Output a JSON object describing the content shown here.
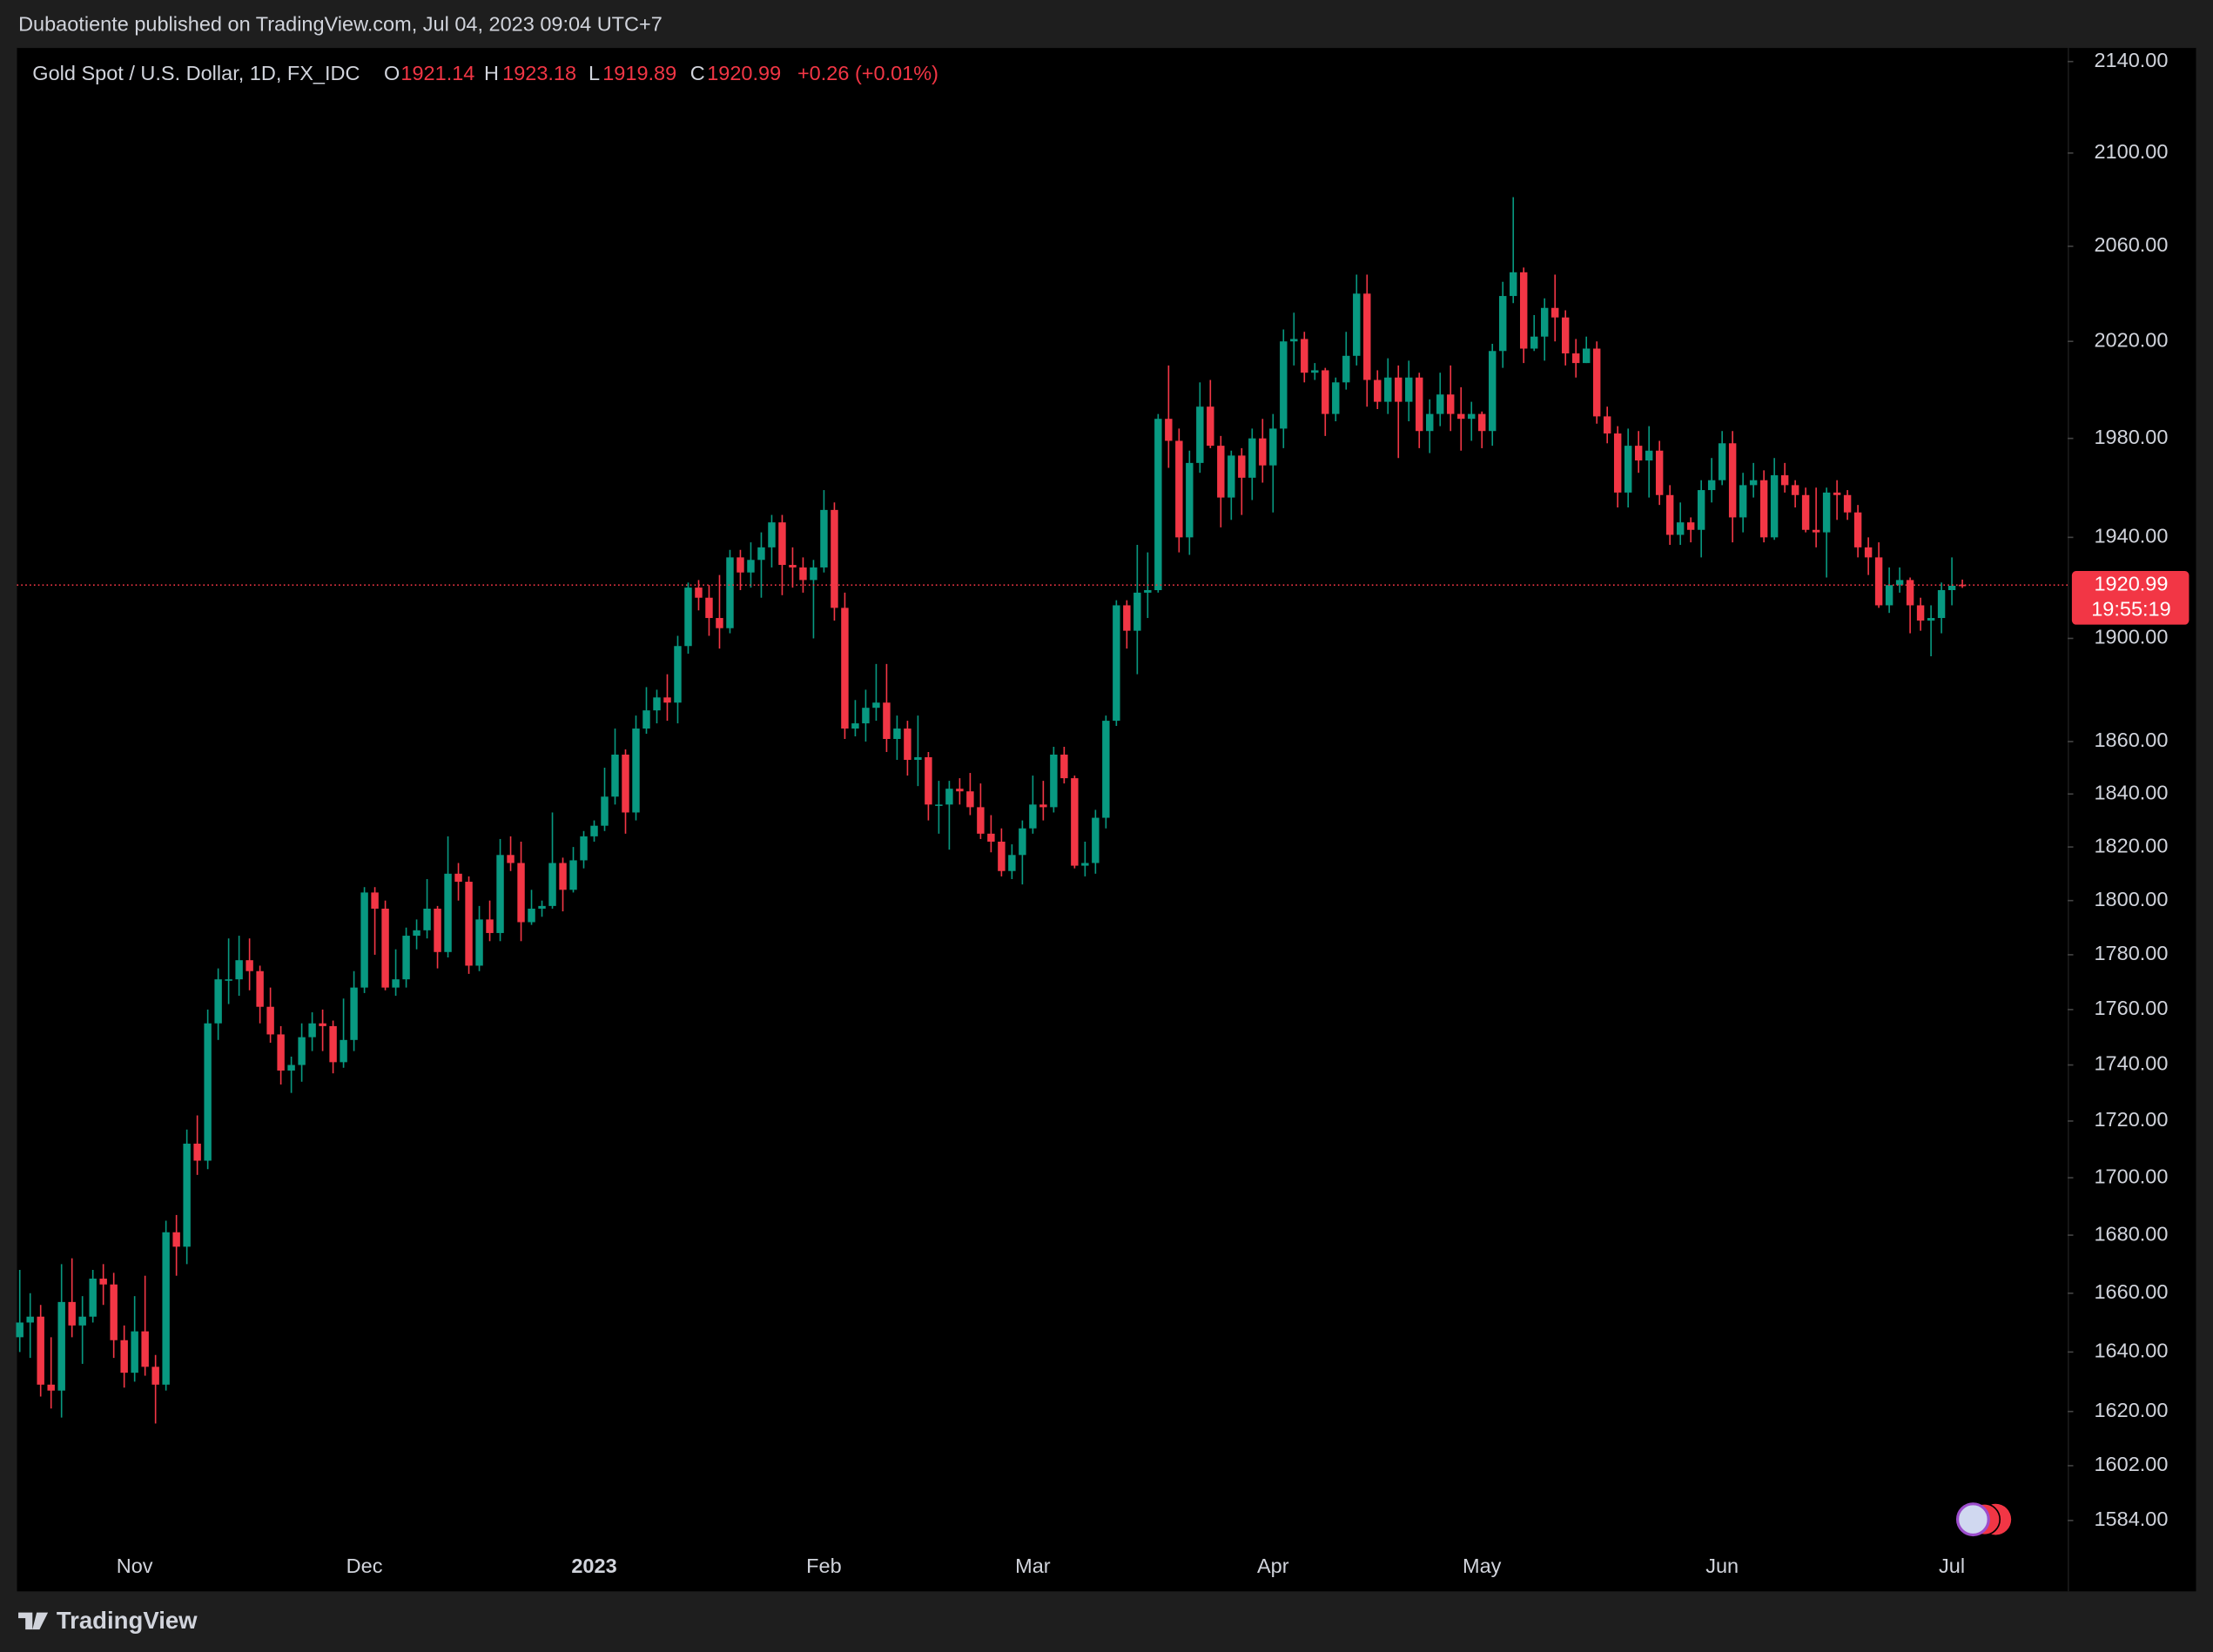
{
  "header": "Dubaotiente published on TradingView.com, Jul 04, 2023 09:04 UTC+7",
  "footer": "TradingView",
  "chart_data": {
    "type": "candlestick",
    "log_scale": true,
    "grid": false,
    "up_color": "#089981",
    "down_color": "#f23645",
    "legend": {
      "symbol": "Gold Spot / U.S. Dollar, 1D, FX_IDC",
      "labels": [
        "O",
        "H",
        "L",
        "C"
      ],
      "change": "+0.26 (+0.01%)"
    },
    "countdown": "19:55:19",
    "ylim": [
      1577,
      2146
    ],
    "yticks": [
      {
        "value": 2140,
        "label": "2140.00"
      },
      {
        "value": 2100,
        "label": "2100.00"
      },
      {
        "value": 2060,
        "label": "2060.00"
      },
      {
        "value": 2020,
        "label": "2020.00"
      },
      {
        "value": 1980,
        "label": "1980.00"
      },
      {
        "value": 1940,
        "label": "1940.00"
      },
      {
        "value": 1900,
        "label": "1900.00"
      },
      {
        "value": 1860,
        "label": "1860.00"
      },
      {
        "value": 1840,
        "label": "1840.00"
      },
      {
        "value": 1820,
        "label": "1820.00"
      },
      {
        "value": 1800,
        "label": "1800.00"
      },
      {
        "value": 1780,
        "label": "1780.00"
      },
      {
        "value": 1760,
        "label": "1760.00"
      },
      {
        "value": 1740,
        "label": "1740.00"
      },
      {
        "value": 1720,
        "label": "1720.00"
      },
      {
        "value": 1700,
        "label": "1700.00"
      },
      {
        "value": 1680,
        "label": "1680.00"
      },
      {
        "value": 1660,
        "label": "1660.00"
      },
      {
        "value": 1640,
        "label": "1640.00"
      },
      {
        "value": 1620,
        "label": "1620.00"
      },
      {
        "value": 1602,
        "label": "1602.00"
      },
      {
        "value": 1584,
        "label": "1584.00"
      }
    ],
    "categories": [
      null,
      null,
      null,
      null,
      null,
      null,
      null,
      null,
      null,
      null,
      null,
      "Nov",
      null,
      null,
      null,
      null,
      null,
      null,
      null,
      null,
      null,
      null,
      null,
      null,
      null,
      null,
      null,
      null,
      null,
      null,
      null,
      null,
      null,
      "Dec",
      null,
      null,
      null,
      null,
      null,
      null,
      null,
      null,
      null,
      null,
      null,
      null,
      null,
      null,
      null,
      null,
      null,
      null,
      null,
      null,
      null,
      "2023",
      null,
      null,
      null,
      null,
      null,
      null,
      null,
      null,
      null,
      null,
      null,
      null,
      null,
      null,
      null,
      null,
      null,
      null,
      null,
      null,
      null,
      "Feb",
      null,
      null,
      null,
      null,
      null,
      null,
      null,
      null,
      null,
      null,
      null,
      null,
      null,
      null,
      null,
      null,
      null,
      null,
      null,
      "Mar",
      null,
      null,
      null,
      null,
      null,
      null,
      null,
      null,
      null,
      null,
      null,
      null,
      null,
      null,
      null,
      null,
      null,
      null,
      null,
      null,
      null,
      null,
      "Apr",
      null,
      null,
      null,
      null,
      null,
      null,
      null,
      null,
      null,
      null,
      null,
      null,
      null,
      null,
      null,
      null,
      null,
      null,
      null,
      "May",
      null,
      null,
      null,
      null,
      null,
      null,
      null,
      null,
      null,
      null,
      null,
      null,
      null,
      null,
      null,
      null,
      null,
      null,
      null,
      null,
      null,
      null,
      "Jun",
      null,
      null,
      null,
      null,
      null,
      null,
      null,
      null,
      null,
      null,
      null,
      null,
      null,
      null,
      null,
      null,
      null,
      null,
      null,
      null,
      null,
      "Jul",
      null
    ],
    "ohlc": [
      [
        1645,
        1668,
        1640,
        1650
      ],
      [
        1650,
        1660,
        1638,
        1652
      ],
      [
        1652,
        1656,
        1625,
        1629
      ],
      [
        1629,
        1645,
        1621,
        1627
      ],
      [
        1627,
        1670,
        1618,
        1657
      ],
      [
        1657,
        1672,
        1645,
        1649
      ],
      [
        1649,
        1659,
        1636,
        1652
      ],
      [
        1652,
        1668,
        1650,
        1665
      ],
      [
        1665,
        1670,
        1656,
        1663
      ],
      [
        1663,
        1667,
        1638,
        1644
      ],
      [
        1644,
        1649,
        1628,
        1633
      ],
      [
        1633,
        1659,
        1630,
        1647
      ],
      [
        1647,
        1666,
        1632,
        1635
      ],
      [
        1635,
        1639,
        1616,
        1629
      ],
      [
        1629,
        1685,
        1627,
        1681
      ],
      [
        1681,
        1687,
        1666,
        1676
      ],
      [
        1676,
        1717,
        1670,
        1712
      ],
      [
        1712,
        1722,
        1701,
        1706
      ],
      [
        1706,
        1760,
        1703,
        1755
      ],
      [
        1755,
        1775,
        1749,
        1771
      ],
      [
        1771,
        1786,
        1762,
        1771
      ],
      [
        1771,
        1787,
        1765,
        1778
      ],
      [
        1778,
        1786,
        1767,
        1774
      ],
      [
        1774,
        1776,
        1755,
        1761
      ],
      [
        1761,
        1768,
        1748,
        1751
      ],
      [
        1751,
        1754,
        1733,
        1738
      ],
      [
        1738,
        1743,
        1730,
        1740
      ],
      [
        1740,
        1755,
        1734,
        1750
      ],
      [
        1750,
        1759,
        1745,
        1755
      ],
      [
        1755,
        1760,
        1745,
        1754
      ],
      [
        1754,
        1756,
        1737,
        1741
      ],
      [
        1741,
        1764,
        1739,
        1749
      ],
      [
        1749,
        1774,
        1745,
        1768
      ],
      [
        1768,
        1805,
        1766,
        1803
      ],
      [
        1803,
        1805,
        1780,
        1797
      ],
      [
        1797,
        1800,
        1767,
        1768
      ],
      [
        1768,
        1782,
        1765,
        1771
      ],
      [
        1771,
        1790,
        1768,
        1787
      ],
      [
        1787,
        1793,
        1782,
        1789
      ],
      [
        1789,
        1808,
        1786,
        1797
      ],
      [
        1797,
        1798,
        1775,
        1781
      ],
      [
        1781,
        1824,
        1779,
        1810
      ],
      [
        1810,
        1814,
        1800,
        1807
      ],
      [
        1807,
        1809,
        1773,
        1776
      ],
      [
        1776,
        1798,
        1774,
        1793
      ],
      [
        1793,
        1800,
        1785,
        1788
      ],
      [
        1788,
        1823,
        1785,
        1817
      ],
      [
        1817,
        1824,
        1811,
        1814
      ],
      [
        1814,
        1822,
        1785,
        1792
      ],
      [
        1792,
        1804,
        1791,
        1797
      ],
      [
        1797,
        1800,
        1794,
        1798
      ],
      [
        1798,
        1833,
        1797,
        1814
      ],
      [
        1814,
        1816,
        1796,
        1804
      ],
      [
        1804,
        1820,
        1803,
        1815
      ],
      [
        1815,
        1826,
        1812,
        1824
      ],
      [
        1824,
        1830,
        1822,
        1828
      ],
      [
        1828,
        1850,
        1826,
        1839
      ],
      [
        1839,
        1865,
        1836,
        1855
      ],
      [
        1855,
        1857,
        1825,
        1833
      ],
      [
        1833,
        1870,
        1830,
        1865
      ],
      [
        1865,
        1881,
        1863,
        1872
      ],
      [
        1872,
        1880,
        1867,
        1877
      ],
      [
        1877,
        1886,
        1868,
        1875
      ],
      [
        1875,
        1901,
        1867,
        1897
      ],
      [
        1897,
        1922,
        1894,
        1920
      ],
      [
        1920,
        1923,
        1911,
        1916
      ],
      [
        1916,
        1921,
        1901,
        1908
      ],
      [
        1908,
        1925,
        1896,
        1904
      ],
      [
        1904,
        1935,
        1902,
        1932
      ],
      [
        1932,
        1935,
        1919,
        1926
      ],
      [
        1926,
        1938,
        1920,
        1931
      ],
      [
        1931,
        1942,
        1916,
        1936
      ],
      [
        1936,
        1949,
        1928,
        1946
      ],
      [
        1946,
        1949,
        1917,
        1929
      ],
      [
        1929,
        1936,
        1920,
        1928
      ],
      [
        1928,
        1932,
        1918,
        1923
      ],
      [
        1923,
        1931,
        1900,
        1928
      ],
      [
        1928,
        1959,
        1926,
        1951
      ],
      [
        1951,
        1954,
        1907,
        1912
      ],
      [
        1912,
        1918,
        1861,
        1865
      ],
      [
        1865,
        1876,
        1862,
        1867
      ],
      [
        1867,
        1880,
        1860,
        1873
      ],
      [
        1873,
        1890,
        1868,
        1875
      ],
      [
        1875,
        1890,
        1856,
        1861
      ],
      [
        1861,
        1870,
        1853,
        1865
      ],
      [
        1865,
        1868,
        1847,
        1853
      ],
      [
        1853,
        1870,
        1843,
        1854
      ],
      [
        1854,
        1856,
        1830,
        1836
      ],
      [
        1836,
        1845,
        1825,
        1836
      ],
      [
        1836,
        1845,
        1819,
        1842
      ],
      [
        1842,
        1846,
        1836,
        1841
      ],
      [
        1841,
        1848,
        1832,
        1835
      ],
      [
        1835,
        1844,
        1823,
        1825
      ],
      [
        1825,
        1832,
        1818,
        1822
      ],
      [
        1822,
        1827,
        1809,
        1811
      ],
      [
        1811,
        1821,
        1808,
        1817
      ],
      [
        1817,
        1830,
        1806,
        1827
      ],
      [
        1827,
        1847,
        1825,
        1836
      ],
      [
        1836,
        1845,
        1830,
        1835
      ],
      [
        1835,
        1858,
        1833,
        1855
      ],
      [
        1855,
        1858,
        1844,
        1846
      ],
      [
        1846,
        1847,
        1812,
        1813
      ],
      [
        1813,
        1822,
        1809,
        1814
      ],
      [
        1814,
        1834,
        1810,
        1831
      ],
      [
        1831,
        1870,
        1827,
        1868
      ],
      [
        1868,
        1915,
        1866,
        1913
      ],
      [
        1913,
        1915,
        1896,
        1903
      ],
      [
        1903,
        1937,
        1886,
        1918
      ],
      [
        1918,
        1934,
        1908,
        1919
      ],
      [
        1919,
        1990,
        1918,
        1988
      ],
      [
        1988,
        2010,
        1968,
        1979
      ],
      [
        1979,
        1984,
        1934,
        1940
      ],
      [
        1940,
        1975,
        1933,
        1970
      ],
      [
        1970,
        2003,
        1966,
        1993
      ],
      [
        1993,
        2004,
        1976,
        1977
      ],
      [
        1977,
        1981,
        1944,
        1956
      ],
      [
        1956,
        1975,
        1947,
        1973
      ],
      [
        1973,
        1976,
        1949,
        1964
      ],
      [
        1964,
        1984,
        1955,
        1980
      ],
      [
        1980,
        1988,
        1962,
        1969
      ],
      [
        1969,
        1990,
        1950,
        1984
      ],
      [
        1984,
        2025,
        1976,
        2020
      ],
      [
        2020,
        2032,
        2010,
        2021
      ],
      [
        2021,
        2024,
        2003,
        2007
      ],
      [
        2007,
        2011,
        2004,
        2008
      ],
      [
        2008,
        2009,
        1981,
        1990
      ],
      [
        1990,
        2005,
        1987,
        2003
      ],
      [
        2003,
        2024,
        2000,
        2014
      ],
      [
        2014,
        2048,
        2010,
        2040
      ],
      [
        2040,
        2048,
        1993,
        2004
      ],
      [
        2004,
        2008,
        1992,
        1995
      ],
      [
        1995,
        2013,
        1990,
        2005
      ],
      [
        2005,
        2010,
        1972,
        1995
      ],
      [
        1995,
        2012,
        1987,
        2005
      ],
      [
        2005,
        2007,
        1976,
        1983
      ],
      [
        1983,
        1996,
        1974,
        1990
      ],
      [
        1990,
        2007,
        1985,
        1998
      ],
      [
        1998,
        2010,
        1983,
        1990
      ],
      [
        1990,
        2001,
        1975,
        1988
      ],
      [
        1988,
        1995,
        1979,
        1990
      ],
      [
        1990,
        1991,
        1976,
        1983
      ],
      [
        1983,
        2019,
        1977,
        2016
      ],
      [
        2016,
        2045,
        2009,
        2039
      ],
      [
        2039,
        2081,
        2036,
        2049
      ],
      [
        2049,
        2051,
        2011,
        2017
      ],
      [
        2017,
        2031,
        2016,
        2022
      ],
      [
        2022,
        2038,
        2012,
        2034
      ],
      [
        2034,
        2048,
        2020,
        2030
      ],
      [
        2030,
        2033,
        2010,
        2015
      ],
      [
        2015,
        2021,
        2005,
        2011
      ],
      [
        2011,
        2022,
        2011,
        2017
      ],
      [
        2017,
        2020,
        1986,
        1989
      ],
      [
        1989,
        1993,
        1978,
        1982
      ],
      [
        1982,
        1985,
        1952,
        1958
      ],
      [
        1958,
        1984,
        1952,
        1977
      ],
      [
        1977,
        1983,
        1966,
        1971
      ],
      [
        1971,
        1985,
        1956,
        1975
      ],
      [
        1975,
        1979,
        1953,
        1957
      ],
      [
        1957,
        1961,
        1937,
        1941
      ],
      [
        1941,
        1954,
        1937,
        1946
      ],
      [
        1946,
        1948,
        1938,
        1943
      ],
      [
        1943,
        1963,
        1932,
        1959
      ],
      [
        1959,
        1972,
        1954,
        1963
      ],
      [
        1963,
        1983,
        1961,
        1978
      ],
      [
        1978,
        1983,
        1938,
        1948
      ],
      [
        1948,
        1966,
        1942,
        1961
      ],
      [
        1961,
        1970,
        1956,
        1963
      ],
      [
        1963,
        1967,
        1938,
        1940
      ],
      [
        1940,
        1972,
        1939,
        1965
      ],
      [
        1965,
        1970,
        1958,
        1961
      ],
      [
        1961,
        1963,
        1952,
        1957
      ],
      [
        1957,
        1960,
        1942,
        1943
      ],
      [
        1943,
        1960,
        1936,
        1942
      ],
      [
        1942,
        1960,
        1924,
        1958
      ],
      [
        1958,
        1963,
        1947,
        1957
      ],
      [
        1957,
        1959,
        1947,
        1950
      ],
      [
        1950,
        1953,
        1932,
        1936
      ],
      [
        1936,
        1940,
        1925,
        1932
      ],
      [
        1932,
        1938,
        1912,
        1913
      ],
      [
        1913,
        1928,
        1910,
        1921
      ],
      [
        1921,
        1928,
        1918,
        1923
      ],
      [
        1923,
        1924,
        1902,
        1913
      ],
      [
        1913,
        1916,
        1903,
        1907
      ],
      [
        1907,
        1913,
        1893,
        1908
      ],
      [
        1908,
        1922,
        1902,
        1919
      ],
      [
        1919,
        1932,
        1913,
        1920.73
      ],
      [
        1921.14,
        1923.18,
        1919.89,
        1920.99
      ]
    ]
  }
}
